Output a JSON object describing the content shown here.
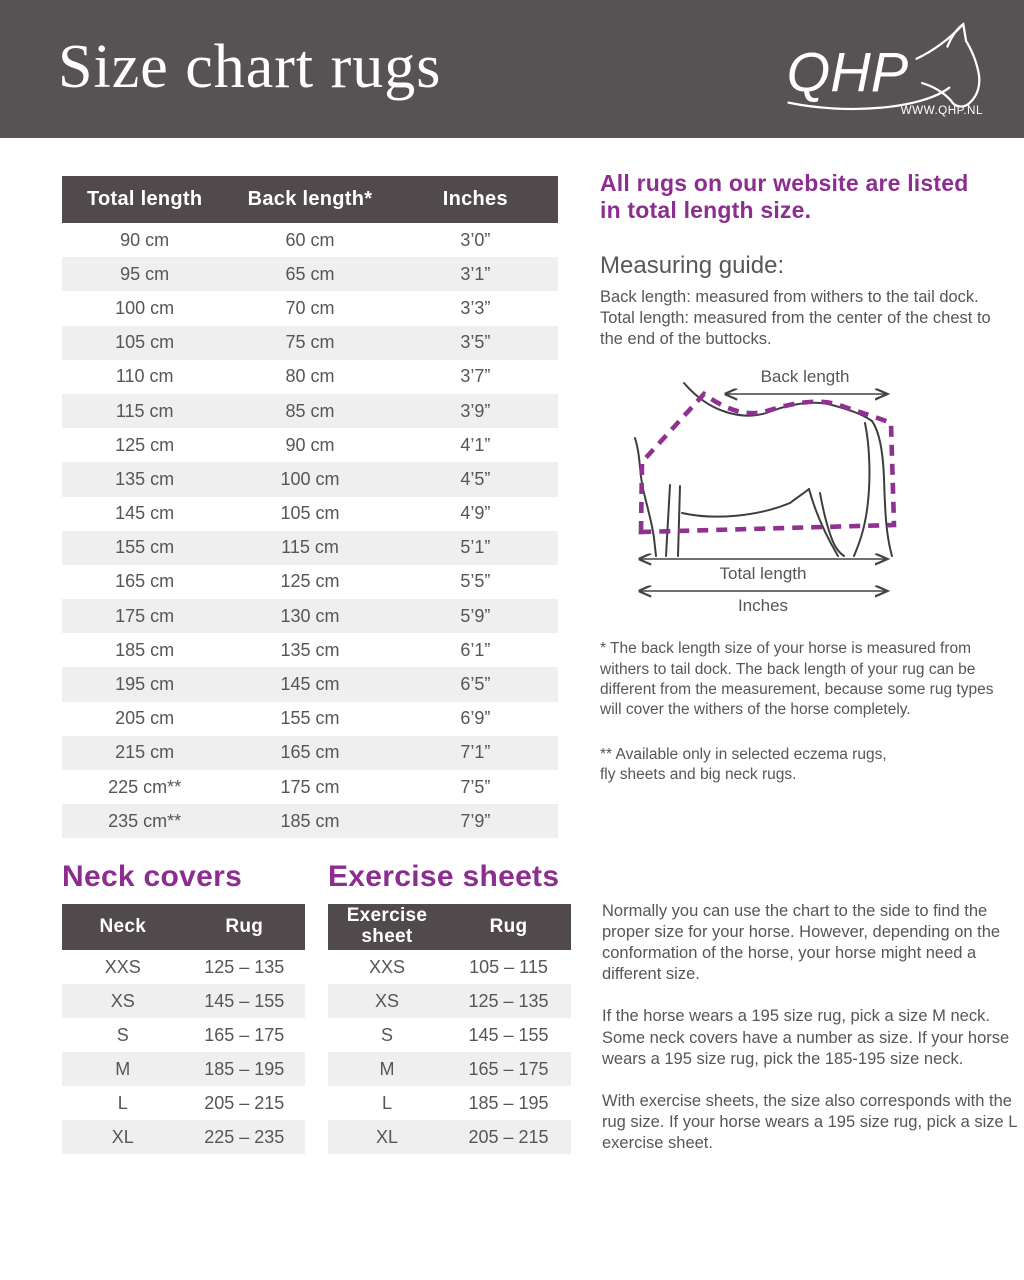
{
  "header": {
    "title": "Size chart rugs",
    "logo_text": "QHP",
    "logo_url": "WWW.QHP.NL"
  },
  "colors": {
    "band_background": "#575253",
    "table_header_background": "#504a4c",
    "row_alternate": "#f0efef",
    "brand_purple": "#8c2e90",
    "body_text": "#56565a"
  },
  "main_table": {
    "headers": [
      "Total length",
      "Back length*",
      "Inches"
    ],
    "rows": [
      [
        "90 cm",
        "60 cm",
        "3’0”"
      ],
      [
        "95 cm",
        "65 cm",
        "3’1”"
      ],
      [
        "100 cm",
        "70 cm",
        "3’3”"
      ],
      [
        "105 cm",
        "75 cm",
        "3’5”"
      ],
      [
        "110 cm",
        "80 cm",
        "3’7”"
      ],
      [
        "115 cm",
        "85 cm",
        "3’9”"
      ],
      [
        "125 cm",
        "90 cm",
        "4’1”"
      ],
      [
        "135 cm",
        "100 cm",
        "4’5”"
      ],
      [
        "145 cm",
        "105 cm",
        "4’9”"
      ],
      [
        "155 cm",
        "115 cm",
        "5’1”"
      ],
      [
        "165 cm",
        "125 cm",
        "5’5”"
      ],
      [
        "175 cm",
        "130 cm",
        "5’9”"
      ],
      [
        "185 cm",
        "135 cm",
        "6’1”"
      ],
      [
        "195 cm",
        "145 cm",
        "6’5”"
      ],
      [
        "205 cm",
        "155 cm",
        "6’9”"
      ],
      [
        "215 cm",
        "165 cm",
        "7’1”"
      ],
      [
        "225 cm**",
        "175 cm",
        "7’5”"
      ],
      [
        "235 cm**",
        "185 cm",
        "7’9”"
      ]
    ]
  },
  "sidebar": {
    "intro": "All rugs on our website are listed in total length size.",
    "guide_title": "Measuring guide:",
    "guide_line1": "Back length: measured from withers to the tail dock.",
    "guide_line2": "Total length: measured from the center of the chest to the end of the buttocks.",
    "diagram": {
      "back_length_label": "Back length",
      "total_length_label": "Total length",
      "inches_label": "Inches"
    },
    "footnote_single": "* The back length size of your horse is measured from withers to tail dock. The back length of your rug can be different from the measurement, because some rug types will cover the withers of the horse completely.",
    "footnote_double": "** Available only in selected eczema rugs,\nfly sheets and big neck rugs."
  },
  "neck_covers": {
    "title": "Neck covers",
    "headers": [
      "Neck",
      "Rug"
    ],
    "rows": [
      [
        "XXS",
        "125 – 135"
      ],
      [
        "XS",
        "145 – 155"
      ],
      [
        "S",
        "165 – 175"
      ],
      [
        "M",
        "185 – 195"
      ],
      [
        "L",
        "205 – 215"
      ],
      [
        "XL",
        "225 – 235"
      ]
    ]
  },
  "exercise_sheets": {
    "title": "Exercise sheets",
    "headers": [
      "Exercise sheet",
      "Rug"
    ],
    "rows": [
      [
        "XXS",
        "105 – 115"
      ],
      [
        "XS",
        "125 – 135"
      ],
      [
        "S",
        "145 – 155"
      ],
      [
        "M",
        "165 – 175"
      ],
      [
        "L",
        "185 – 195"
      ],
      [
        "XL",
        "205 – 215"
      ]
    ]
  },
  "notes": {
    "p1": "Normally you can use the chart to the side to find the proper size for your horse.  However, depending on the conformation of the horse, your horse might need a different size.",
    "p2": "If the horse wears a 195 size rug, pick a size M neck. Some neck covers have a number as size. If your horse wears a 195 size rug, pick the 185-195 size neck.",
    "p3": "With exercise sheets, the size also corresponds with the rug size. If your horse wears a 195 size rug, pick a size L exercise sheet."
  }
}
